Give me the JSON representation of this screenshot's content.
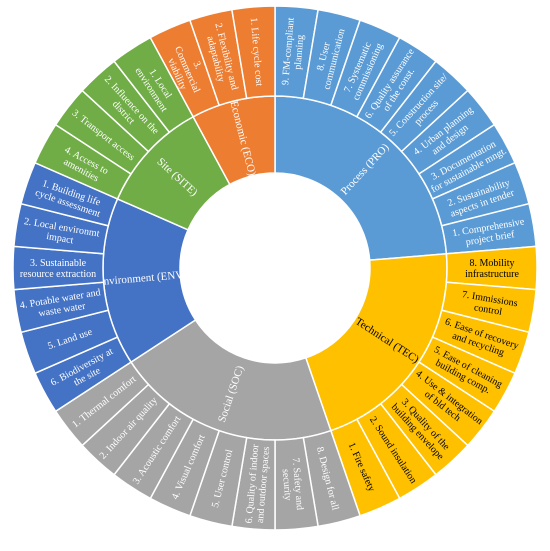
{
  "diagram": {
    "categories": [
      {
        "id": "PRO",
        "label": "Process (PRO)",
        "color": "#5B9BD5",
        "text_color": "#ffffff",
        "items": [
          [
            "9. FM-compliant",
            "planning"
          ],
          [
            "8. User",
            "communication"
          ],
          [
            "7. Systematic",
            "commissioning"
          ],
          [
            "6. Quality assurance",
            "of the const."
          ],
          [
            "5. Construction site/",
            "process"
          ],
          [
            "4. Urban planning",
            "and design"
          ],
          [
            "3. Documentation",
            "for sustainable mngt."
          ],
          [
            "2. Sustainability",
            "aspects in tender"
          ],
          [
            "1. Comprehensive",
            "project brief"
          ]
        ]
      },
      {
        "id": "TEC",
        "label": "Technical (TEC)",
        "color": "#FFC000",
        "text_color": "#000000",
        "items": [
          [
            "8. Mobility",
            "infrastructure"
          ],
          [
            "7. Immissions",
            "control"
          ],
          [
            "6. Ease of recovery",
            "and recycling"
          ],
          [
            "5. Ease of cleaning",
            "building comp."
          ],
          [
            "4. Use & integration",
            "of bld tech"
          ],
          [
            "3. Quality of the",
            "building envelope"
          ],
          [
            "2. Sound insulation"
          ],
          [
            "1. Fire safety"
          ]
        ]
      },
      {
        "id": "SOC",
        "label": "Social (SOC)",
        "color": "#A5A5A5",
        "text_color": "#ffffff",
        "items": [
          [
            "8. Design for all"
          ],
          [
            "7. Safety and",
            "security"
          ],
          [
            "6. Quality of indoor",
            "and outdoor spaces"
          ],
          [
            "5. User control"
          ],
          [
            "4. Visual comfort"
          ],
          [
            "3. Acoustic comfort"
          ],
          [
            "2. Indoor air quality"
          ],
          [
            "1. Thermal comfort"
          ]
        ]
      },
      {
        "id": "ENV",
        "label": "Environment (ENV)",
        "color": "#4472C4",
        "text_color": "#ffffff",
        "items": [
          [
            "6. Biodiversity at",
            "the site"
          ],
          [
            "5. Land use"
          ],
          [
            "4. Potable water and",
            "waste water"
          ],
          [
            "3. Sustainable",
            "resource extraction"
          ],
          [
            "2. Local environmt",
            "impact"
          ],
          [
            "1. Building life",
            "cycle assessment"
          ]
        ]
      },
      {
        "id": "SITE",
        "label": "Site (SITE)",
        "color": "#70AD47",
        "text_color": "#ffffff",
        "items": [
          [
            "4. Access to",
            "amenities"
          ],
          [
            "3. Transport access"
          ],
          [
            "2. Influence on the",
            "district"
          ],
          [
            "1. Local",
            "environment"
          ]
        ]
      },
      {
        "id": "ECO",
        "label": "Economic (ECO)",
        "color": "#ED7D31",
        "text_color": "#ffffff",
        "items": [
          [
            "3.",
            "Commercial",
            "viability"
          ],
          [
            "2. Flexibility and",
            "adaptability"
          ],
          [
            "1. Life cycle cost"
          ]
        ]
      }
    ]
  }
}
